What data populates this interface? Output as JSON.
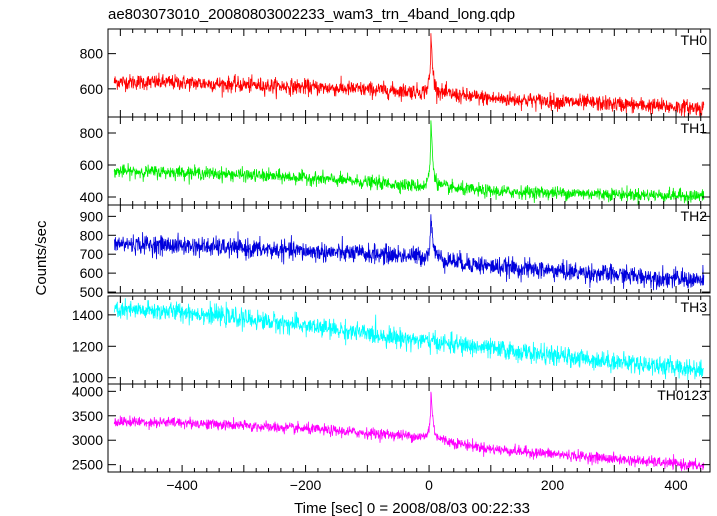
{
  "chart_data": {
    "type": "line",
    "title": "ae803073010_20080803002233_wam3_trn_4band_long.qdp",
    "xlabel": "Time [sec] 0 = 2008/08/03 00:22:33",
    "ylabel": "Counts/sec",
    "xlim": [
      -520,
      455
    ],
    "xticks": [
      -400,
      -200,
      0,
      200,
      400
    ],
    "x_tick_labels": [
      "−400",
      "−200",
      "0",
      "200",
      "400"
    ],
    "grid": false,
    "panels": [
      {
        "name": "TH0",
        "color": "#ff0000",
        "ylim": [
          440,
          940
        ],
        "yticks": [
          600,
          800
        ],
        "y_tick_labels": [
          "600",
          "800"
        ],
        "x_range": [
          -510,
          445
        ],
        "trend": [
          [
            -510,
            640
          ],
          [
            -400,
            635
          ],
          [
            -200,
            610
          ],
          [
            -20,
            585
          ],
          [
            100,
            545
          ],
          [
            445,
            490
          ]
        ],
        "noise_sd": 22,
        "peak": {
          "x": 3,
          "height": 330
        }
      },
      {
        "name": "TH1",
        "color": "#00ee00",
        "ylim": [
          350,
          900
        ],
        "yticks": [
          400,
          600,
          800
        ],
        "y_tick_labels": [
          "400",
          "600",
          "800"
        ],
        "x_range": [
          -510,
          445
        ],
        "trend": [
          [
            -510,
            560
          ],
          [
            -400,
            555
          ],
          [
            -200,
            520
          ],
          [
            -20,
            470
          ],
          [
            100,
            435
          ],
          [
            445,
            405
          ]
        ],
        "noise_sd": 20,
        "peak": {
          "x": 3,
          "height": 420
        }
      },
      {
        "name": "TH2",
        "color": "#0000dd",
        "ylim": [
          495,
          960
        ],
        "yticks": [
          500,
          600,
          700,
          800,
          900
        ],
        "y_tick_labels": [
          "500",
          "600",
          "700",
          "800",
          "900"
        ],
        "x_range": [
          -510,
          445
        ],
        "trend": [
          [
            -510,
            755
          ],
          [
            -400,
            745
          ],
          [
            -200,
            715
          ],
          [
            -20,
            690
          ],
          [
            100,
            635
          ],
          [
            445,
            560
          ]
        ],
        "noise_sd": 25,
        "peak": {
          "x": 3,
          "height": 240
        }
      },
      {
        "name": "TH3",
        "color": "#00ffff",
        "ylim": [
          960,
          1520
        ],
        "yticks": [
          1000,
          1200,
          1400
        ],
        "y_tick_labels": [
          "1000",
          "1200",
          "1400"
        ],
        "x_range": [
          -510,
          445
        ],
        "trend": [
          [
            -510,
            1430
          ],
          [
            -400,
            1420
          ],
          [
            -200,
            1330
          ],
          [
            0,
            1230
          ],
          [
            200,
            1140
          ],
          [
            445,
            1050
          ]
        ],
        "noise_sd": 30,
        "peak": null
      },
      {
        "name": "TH0123",
        "color": "#ff00ff",
        "ylim": [
          2350,
          4150
        ],
        "yticks": [
          2500,
          3000,
          3500,
          4000
        ],
        "y_tick_labels": [
          "2500",
          "3000",
          "3500",
          "4000"
        ],
        "x_range": [
          -510,
          445
        ],
        "trend": [
          [
            -510,
            3380
          ],
          [
            -400,
            3360
          ],
          [
            -200,
            3230
          ],
          [
            -20,
            3080
          ],
          [
            100,
            2820
          ],
          [
            445,
            2470
          ]
        ],
        "noise_sd": 55,
        "peak": {
          "x": 3,
          "height": 1000
        }
      }
    ]
  }
}
